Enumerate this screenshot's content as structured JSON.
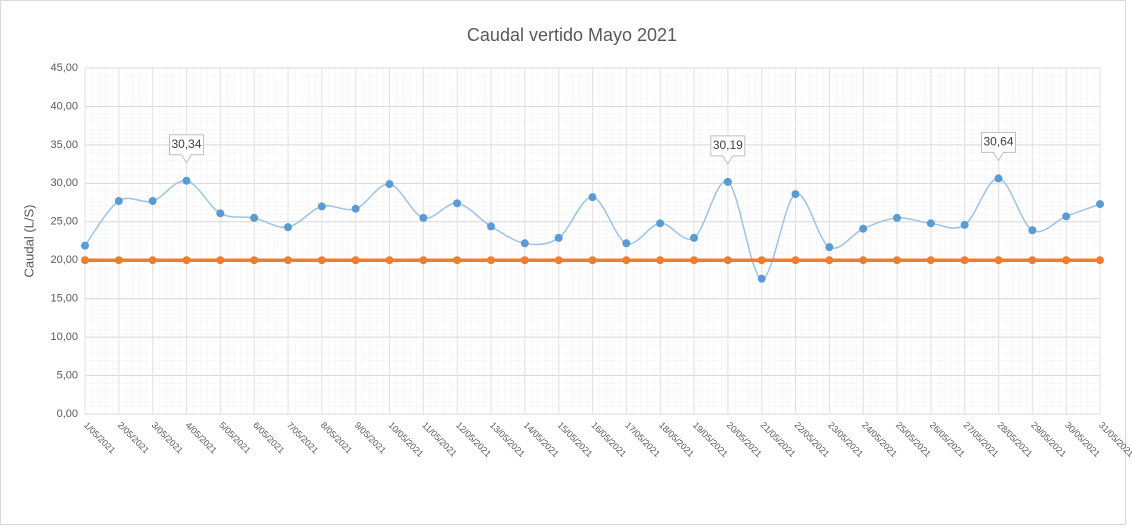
{
  "chart_data": {
    "type": "line",
    "title": "Caudal vertido Mayo 2021",
    "y_label": "Caudal (L/S)",
    "categories": [
      "1/05/2021",
      "2/05/2021",
      "3/05/2021",
      "4/05/2021",
      "5/05/2021",
      "6/05/2021",
      "7/05/2021",
      "8/05/2021",
      "9/05/2021",
      "10/05/2021",
      "11/05/2021",
      "12/05/2021",
      "13/05/2021",
      "14/05/2021",
      "15/05/2021",
      "16/05/2021",
      "17/05/2021",
      "18/05/2021",
      "19/05/2021",
      "20/05/2021",
      "21/05/2021",
      "22/05/2021",
      "23/05/2021",
      "24/05/2021",
      "25/05/2021",
      "26/05/2021",
      "27/05/2021",
      "28/05/2021",
      "29/05/2021",
      "30/05/2021",
      "31/05/2021"
    ],
    "series": [
      {
        "color": "#5b9bd5",
        "line_color": "#9dc3e6",
        "smooth": true,
        "values": [
          21.9,
          27.7,
          27.7,
          30.34,
          26.1,
          25.5,
          24.3,
          27.0,
          26.7,
          29.9,
          25.5,
          27.4,
          24.4,
          22.2,
          22.9,
          28.2,
          22.2,
          24.8,
          22.9,
          30.19,
          17.6,
          28.6,
          21.7,
          24.1,
          25.5,
          24.8,
          24.6,
          30.64,
          23.9,
          25.7,
          27.3
        ],
        "value_labels": [
          null,
          null,
          null,
          "30,34",
          null,
          null,
          null,
          null,
          null,
          null,
          null,
          null,
          null,
          null,
          null,
          null,
          null,
          null,
          null,
          "30,19",
          null,
          null,
          null,
          null,
          null,
          null,
          null,
          "30,64",
          null,
          null,
          null
        ]
      },
      {
        "color": "#ed7d31",
        "line_color": "#ed7d31",
        "smooth": false,
        "values": [
          20,
          20,
          20,
          20,
          20,
          20,
          20,
          20,
          20,
          20,
          20,
          20,
          20,
          20,
          20,
          20,
          20,
          20,
          20,
          20,
          20,
          20,
          20,
          20,
          20,
          20,
          20,
          20,
          20,
          20,
          20
        ]
      }
    ],
    "ylim": [
      0,
      45
    ],
    "yticks": [
      {
        "value": 0,
        "label": "0,00"
      },
      {
        "value": 5,
        "label": "5,00"
      },
      {
        "value": 10,
        "label": "10,00"
      },
      {
        "value": 15,
        "label": "15,00"
      },
      {
        "value": 20,
        "label": "20,00"
      },
      {
        "value": 25,
        "label": "25,00"
      },
      {
        "value": 30,
        "label": "30,00"
      },
      {
        "value": 35,
        "label": "35,00"
      },
      {
        "value": 40,
        "label": "40,00"
      },
      {
        "value": 45,
        "label": "45,00"
      }
    ],
    "grid": true
  }
}
